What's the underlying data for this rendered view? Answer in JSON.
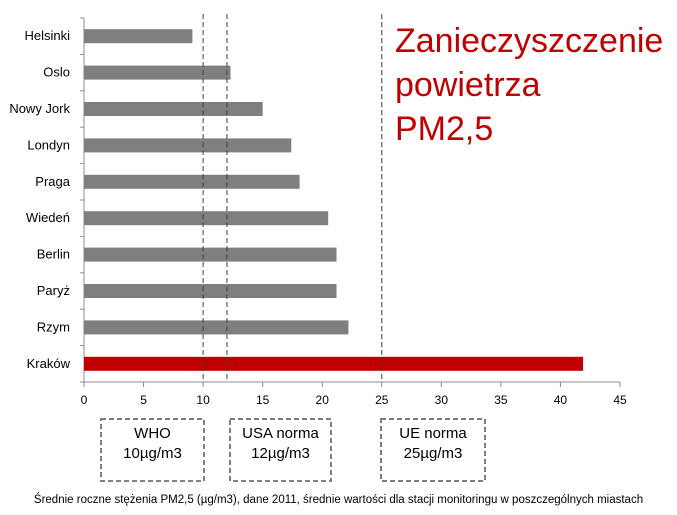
{
  "chart_data": {
    "type": "bar",
    "orientation": "horizontal",
    "title_lines": [
      "Zanieczyszczenie",
      "powietrza",
      "PM2,5"
    ],
    "categories": [
      "Helsinki",
      "Oslo",
      "Nowy Jork",
      "Londyn",
      "Praga",
      "Wiedeń",
      "Berlin",
      "Paryż",
      "Rzym",
      "Kraków"
    ],
    "values": [
      9.1,
      12.3,
      15.0,
      17.4,
      18.1,
      20.5,
      21.2,
      21.2,
      22.2,
      41.9
    ],
    "bar_color": "#7f7f7f",
    "highlight": {
      "category": "Kraków",
      "color": "#c00000"
    },
    "xlim": [
      0,
      45
    ],
    "xticks": [
      0,
      5,
      10,
      15,
      20,
      25,
      30,
      35,
      40,
      45
    ],
    "reference_lines": [
      {
        "value": 10,
        "label_lines": [
          "WHO",
          "10µg/m3"
        ]
      },
      {
        "value": 12,
        "label_lines": [
          "USA norma",
          "12µg/m3"
        ]
      },
      {
        "value": 25,
        "label_lines": [
          "UE norma",
          "25µg/m3"
        ]
      }
    ],
    "grid": false,
    "title_color": "#c00000"
  },
  "caption": "Średnie roczne stężenia PM2,5 (µg/m3), dane 2011,  średnie wartości dla stacji monitoringu w poszczególnych miastach"
}
